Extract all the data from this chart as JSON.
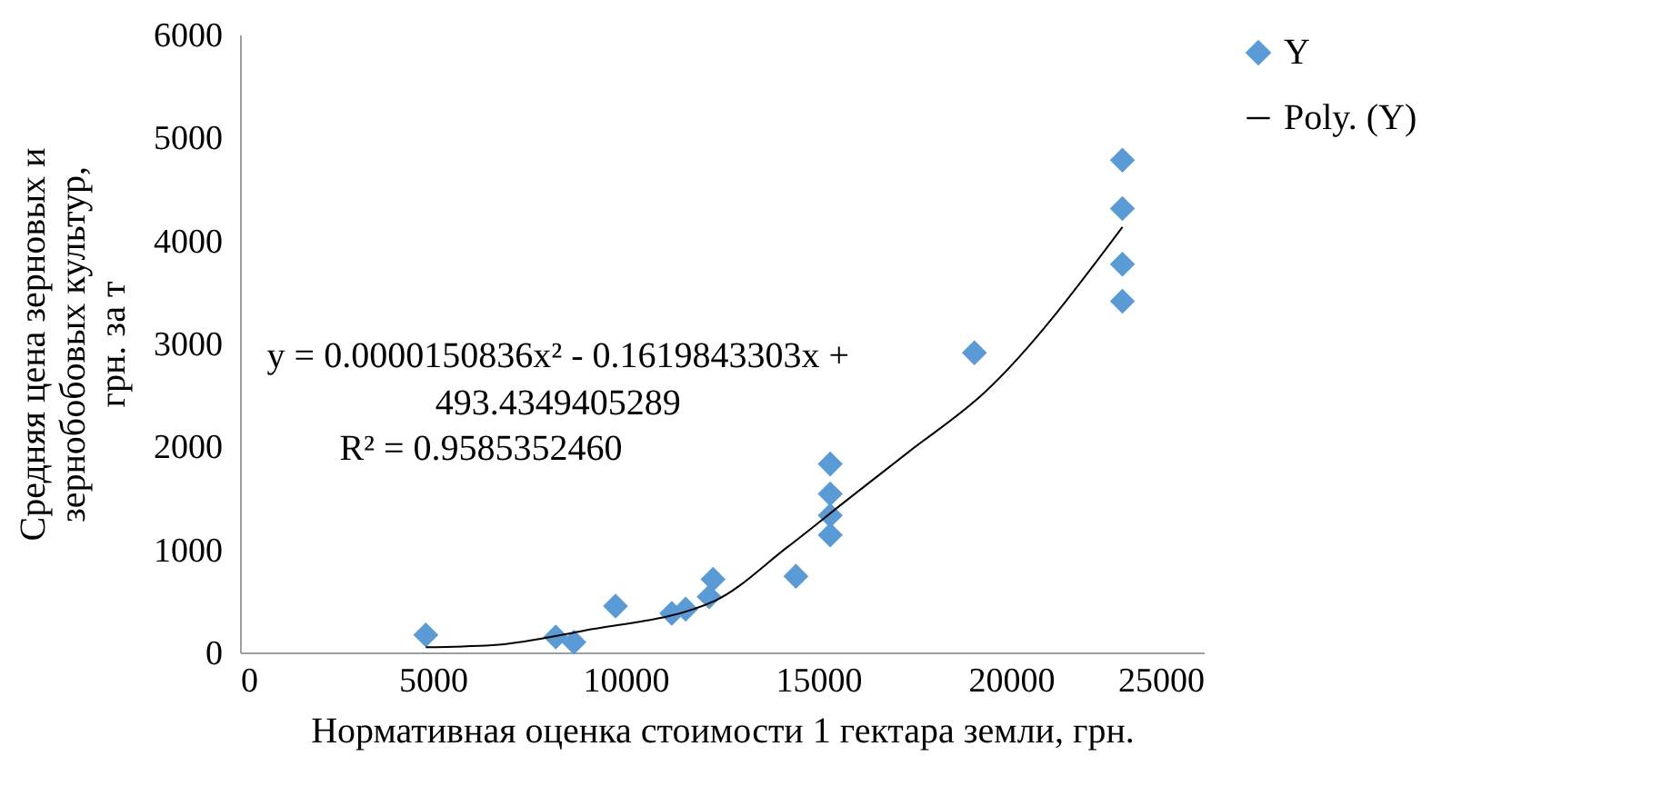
{
  "chart_data": {
    "type": "scatter",
    "xlabel": "Нормативная оценка стоимости 1 гектара земли, грн.",
    "ylabel": "Средняя цена зерновых и зернобобовых культур, грн. за т",
    "x": [
      4820,
      8190,
      8660,
      9740,
      11200,
      11560,
      12170,
      12270,
      14420,
      15310,
      15310,
      15310,
      15310,
      19050,
      22890,
      22890,
      22890,
      22890
    ],
    "series": [
      {
        "name": "Y",
        "marker": "diamond",
        "color": "#5b9bd5",
        "values": [
          170,
          150,
          100,
          450,
          380,
          420,
          540,
          710,
          740,
          1830,
          1540,
          1330,
          1140,
          2910,
          4780,
          4310,
          3770,
          3410
        ]
      },
      {
        "name": "Poly. (Y)",
        "type": "line",
        "marker": "none",
        "color": "#000000",
        "x": [
          4820,
          6550,
          8900,
          12310,
          14190,
          15780,
          17320,
          19330,
          22890
        ],
        "values": [
          50,
          70,
          210,
          500,
          1020,
          1490,
          1940,
          2530,
          4130
        ]
      }
    ],
    "annotations": [
      "y = 0.0000150836x² - 0.1619843303x + 493.4349405289",
      "R² = 0.9585352460"
    ],
    "xlim": [
      0,
      25000
    ],
    "xticks": [
      0,
      5000,
      10000,
      15000,
      20000,
      25000
    ],
    "ylim": [
      0,
      6000
    ],
    "yticks": [
      0,
      1000,
      2000,
      3000,
      4000,
      5000,
      6000
    ],
    "legend": "right"
  }
}
